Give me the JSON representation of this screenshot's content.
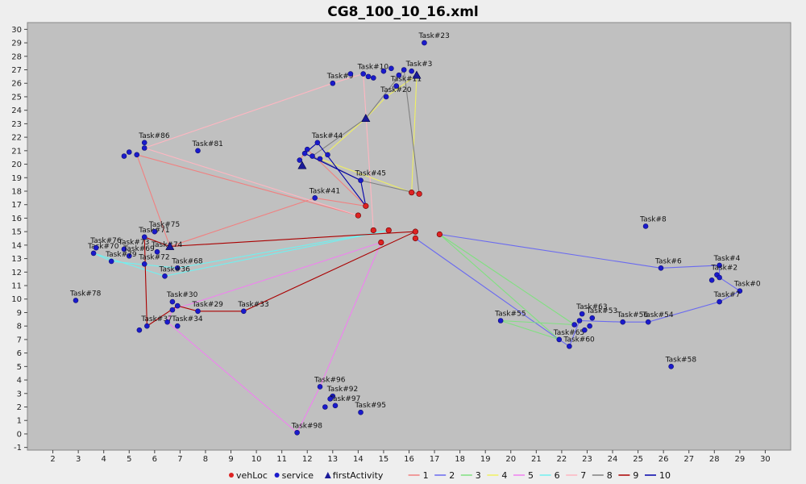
{
  "chart_data": {
    "type": "scatter",
    "title": "CG8_100_10_16.xml",
    "xlabel": "",
    "ylabel": "",
    "xlim": [
      1,
      31
    ],
    "ylim": [
      -1.2,
      30.5
    ],
    "x_ticks": [
      2,
      3,
      4,
      5,
      6,
      7,
      8,
      9,
      10,
      11,
      12,
      13,
      14,
      15,
      16,
      17,
      18,
      19,
      20,
      21,
      22,
      23,
      24,
      25,
      26,
      27,
      28,
      29,
      30
    ],
    "y_ticks": [
      -1,
      0,
      1,
      2,
      3,
      4,
      5,
      6,
      7,
      8,
      9,
      10,
      11,
      12,
      13,
      14,
      15,
      16,
      17,
      18,
      19,
      20,
      21,
      22,
      23,
      24,
      25,
      26,
      27,
      28,
      29,
      30
    ],
    "grid": false,
    "legend_position": "bottom",
    "legend": [
      {
        "name": "vehLoc",
        "marker": "circle",
        "color": "#dd2222"
      },
      {
        "name": "service",
        "marker": "circle",
        "color": "#1a1acc"
      },
      {
        "name": "firstActivity",
        "marker": "triangle",
        "color": "#1a1a99"
      },
      {
        "name": "1",
        "marker": "line",
        "color": "#f08080"
      },
      {
        "name": "2",
        "marker": "line",
        "color": "#6a6af0"
      },
      {
        "name": "3",
        "marker": "line",
        "color": "#80e080"
      },
      {
        "name": "4",
        "marker": "line",
        "color": "#f0f060"
      },
      {
        "name": "5",
        "marker": "line",
        "color": "#f080f0"
      },
      {
        "name": "6",
        "marker": "line",
        "color": "#70f0f0"
      },
      {
        "name": "7",
        "marker": "line",
        "color": "#ffb6c1"
      },
      {
        "name": "8",
        "marker": "line",
        "color": "#808080"
      },
      {
        "name": "9",
        "marker": "line",
        "color": "#aa0000"
      },
      {
        "name": "10",
        "marker": "line",
        "color": "#0000aa"
      }
    ],
    "veh_locations": [
      [
        16.1,
        17.9
      ],
      [
        16.4,
        17.8
      ],
      [
        14.3,
        16.9
      ],
      [
        14.0,
        16.2
      ],
      [
        14.6,
        15.1
      ],
      [
        15.2,
        15.1
      ],
      [
        16.25,
        15.0
      ],
      [
        17.2,
        14.8
      ],
      [
        16.25,
        14.5
      ],
      [
        14.9,
        14.2
      ]
    ],
    "first_activities": [
      [
        14.3,
        23.4
      ],
      [
        16.3,
        26.6
      ],
      [
        11.8,
        19.9
      ],
      [
        6.6,
        13.9
      ]
    ],
    "service_points": [
      {
        "label": "Task#23",
        "x": 16.6,
        "y": 29.0
      },
      {
        "label": "Task#20",
        "x": 15.1,
        "y": 25.0
      },
      {
        "label": "Task#9",
        "x": 13.0,
        "y": 26.0
      },
      {
        "label": "Task#10",
        "x": 14.2,
        "y": 26.7
      },
      {
        "label": "Task#11",
        "x": 15.5,
        "y": 25.8
      },
      {
        "label": "Task#3",
        "x": 16.1,
        "y": 26.9
      },
      {
        "label": "",
        "x": 13.7,
        "y": 26.7
      },
      {
        "label": "",
        "x": 14.4,
        "y": 26.5
      },
      {
        "label": "",
        "x": 14.6,
        "y": 26.4
      },
      {
        "label": "",
        "x": 15.0,
        "y": 26.9
      },
      {
        "label": "",
        "x": 15.3,
        "y": 27.1
      },
      {
        "label": "",
        "x": 15.6,
        "y": 26.6
      },
      {
        "label": "",
        "x": 15.8,
        "y": 27.0
      },
      {
        "label": "Task#44",
        "x": 12.4,
        "y": 21.6
      },
      {
        "label": "Task#81",
        "x": 7.7,
        "y": 21.0
      },
      {
        "label": "Task#45",
        "x": 14.1,
        "y": 18.8
      },
      {
        "label": "Task#41",
        "x": 12.3,
        "y": 17.5
      },
      {
        "label": "",
        "x": 11.9,
        "y": 20.8
      },
      {
        "label": "",
        "x": 12.0,
        "y": 21.1
      },
      {
        "label": "",
        "x": 12.2,
        "y": 20.6
      },
      {
        "label": "",
        "x": 12.5,
        "y": 20.4
      },
      {
        "label": "",
        "x": 12.8,
        "y": 20.7
      },
      {
        "label": "",
        "x": 11.7,
        "y": 20.3
      },
      {
        "label": "Task#86",
        "x": 5.6,
        "y": 21.6
      },
      {
        "label": "",
        "x": 4.8,
        "y": 20.6
      },
      {
        "label": "",
        "x": 5.0,
        "y": 20.9
      },
      {
        "label": "",
        "x": 5.3,
        "y": 20.7
      },
      {
        "label": "",
        "x": 5.6,
        "y": 21.2
      },
      {
        "label": "Task#71",
        "x": 5.6,
        "y": 14.6
      },
      {
        "label": "Task#75",
        "x": 6.0,
        "y": 15.0
      },
      {
        "label": "Task#70",
        "x": 3.6,
        "y": 13.4
      },
      {
        "label": "Task#76",
        "x": 3.7,
        "y": 13.8
      },
      {
        "label": "Task#73",
        "x": 4.8,
        "y": 13.7
      },
      {
        "label": "Task#69",
        "x": 5.0,
        "y": 13.2
      },
      {
        "label": "Task#79",
        "x": 4.3,
        "y": 12.8
      },
      {
        "label": "Task#72",
        "x": 5.6,
        "y": 12.6
      },
      {
        "label": "Task#68",
        "x": 6.9,
        "y": 12.3
      },
      {
        "label": "Task#36",
        "x": 6.4,
        "y": 11.7
      },
      {
        "label": "Task#74",
        "x": 6.1,
        "y": 13.5
      },
      {
        "label": "Task#78",
        "x": 2.9,
        "y": 9.9
      },
      {
        "label": "Task#30",
        "x": 6.7,
        "y": 9.8
      },
      {
        "label": "Task#29",
        "x": 7.7,
        "y": 9.1
      },
      {
        "label": "Task#33",
        "x": 9.5,
        "y": 9.1
      },
      {
        "label": "Task#37",
        "x": 5.7,
        "y": 8.0
      },
      {
        "label": "Task#34",
        "x": 6.9,
        "y": 8.0
      },
      {
        "label": "",
        "x": 5.4,
        "y": 7.7
      },
      {
        "label": "",
        "x": 6.5,
        "y": 8.3
      },
      {
        "label": "",
        "x": 6.7,
        "y": 9.2
      },
      {
        "label": "",
        "x": 6.9,
        "y": 9.5
      },
      {
        "label": "Task#8",
        "x": 25.3,
        "y": 15.4
      },
      {
        "label": "Task#6",
        "x": 25.9,
        "y": 12.3
      },
      {
        "label": "Task#4",
        "x": 28.2,
        "y": 12.5
      },
      {
        "label": "Task#2",
        "x": 28.1,
        "y": 11.8
      },
      {
        "label": "",
        "x": 27.9,
        "y": 11.4
      },
      {
        "label": "",
        "x": 28.2,
        "y": 11.6
      },
      {
        "label": "Task#0",
        "x": 29.0,
        "y": 10.6
      },
      {
        "label": "Task#7",
        "x": 28.2,
        "y": 9.8
      },
      {
        "label": "Task#63",
        "x": 22.8,
        "y": 8.9
      },
      {
        "label": "Task#53",
        "x": 23.2,
        "y": 8.6
      },
      {
        "label": "Task#56",
        "x": 24.4,
        "y": 8.3
      },
      {
        "label": "Task#54",
        "x": 25.4,
        "y": 8.3
      },
      {
        "label": "Task#55",
        "x": 19.6,
        "y": 8.4
      },
      {
        "label": "Task#65",
        "x": 21.9,
        "y": 7.0
      },
      {
        "label": "Task#60",
        "x": 22.3,
        "y": 6.5
      },
      {
        "label": "",
        "x": 22.5,
        "y": 8.1
      },
      {
        "label": "",
        "x": 22.7,
        "y": 8.4
      },
      {
        "label": "",
        "x": 22.9,
        "y": 7.7
      },
      {
        "label": "",
        "x": 23.1,
        "y": 8.0
      },
      {
        "label": "Task#58",
        "x": 26.3,
        "y": 5.0
      },
      {
        "label": "Task#96",
        "x": 12.5,
        "y": 3.5
      },
      {
        "label": "Task#92",
        "x": 13.0,
        "y": 2.8
      },
      {
        "label": "Task#97",
        "x": 13.1,
        "y": 2.1
      },
      {
        "label": "Task#95",
        "x": 14.1,
        "y": 1.6
      },
      {
        "label": "Task#98",
        "x": 11.6,
        "y": 0.1
      },
      {
        "label": "",
        "x": 12.7,
        "y": 2.0
      },
      {
        "label": "",
        "x": 12.9,
        "y": 2.6
      }
    ],
    "routes": [
      {
        "name": "1",
        "color": "#f08080",
        "points": [
          [
            14.0,
            16.2
          ],
          [
            5.3,
            20.7
          ],
          [
            6.6,
            13.9
          ],
          [
            12.3,
            17.5
          ],
          [
            14.3,
            16.9
          ],
          [
            12.0,
            21.1
          ],
          [
            11.7,
            20.3
          ]
        ]
      },
      {
        "name": "2",
        "color": "#6a6af0",
        "points": [
          [
            16.25,
            14.5
          ],
          [
            21.9,
            7.0
          ],
          [
            22.3,
            6.5
          ],
          [
            22.7,
            8.4
          ],
          [
            24.4,
            8.3
          ],
          [
            25.4,
            8.3
          ],
          [
            28.2,
            9.8
          ],
          [
            29.0,
            10.6
          ],
          [
            28.2,
            11.6
          ],
          [
            28.2,
            12.5
          ],
          [
            25.9,
            12.3
          ],
          [
            17.2,
            14.8
          ]
        ]
      },
      {
        "name": "3",
        "color": "#80e080",
        "points": [
          [
            17.2,
            14.8
          ],
          [
            22.5,
            8.1
          ],
          [
            19.6,
            8.4
          ],
          [
            21.9,
            7.0
          ],
          [
            17.2,
            14.8
          ]
        ]
      },
      {
        "name": "4",
        "color": "#f0f060",
        "points": [
          [
            16.1,
            17.9
          ],
          [
            16.3,
            26.6
          ],
          [
            15.1,
            25.0
          ],
          [
            14.3,
            23.4
          ],
          [
            12.5,
            20.4
          ],
          [
            16.1,
            17.9
          ]
        ]
      },
      {
        "name": "5",
        "color": "#f080f0",
        "points": [
          [
            14.9,
            14.2
          ],
          [
            6.7,
            9.2
          ],
          [
            6.5,
            8.3
          ],
          [
            11.6,
            0.1
          ],
          [
            12.5,
            3.5
          ],
          [
            14.9,
            14.2
          ]
        ]
      },
      {
        "name": "6",
        "color": "#70f0f0",
        "points": [
          [
            15.2,
            15.1
          ],
          [
            6.4,
            11.7
          ],
          [
            3.6,
            13.4
          ],
          [
            4.3,
            12.8
          ],
          [
            6.9,
            12.3
          ],
          [
            15.2,
            15.1
          ]
        ]
      },
      {
        "name": "7",
        "color": "#ffb6c1",
        "points": [
          [
            14.0,
            16.2
          ],
          [
            5.6,
            21.2
          ],
          [
            13.0,
            26.0
          ],
          [
            14.2,
            26.7
          ],
          [
            14.6,
            15.1
          ]
        ]
      },
      {
        "name": "8",
        "color": "#808080",
        "points": [
          [
            16.4,
            17.8
          ],
          [
            15.8,
            27.0
          ],
          [
            14.3,
            23.4
          ],
          [
            12.2,
            20.6
          ],
          [
            14.1,
            18.8
          ],
          [
            16.4,
            17.8
          ]
        ]
      },
      {
        "name": "9",
        "color": "#aa0000",
        "points": [
          [
            16.25,
            15.0
          ],
          [
            6.6,
            13.9
          ],
          [
            5.6,
            14.6
          ],
          [
            5.7,
            8.0
          ],
          [
            6.9,
            9.5
          ],
          [
            7.7,
            9.1
          ],
          [
            9.5,
            9.1
          ],
          [
            16.25,
            15.0
          ]
        ]
      },
      {
        "name": "10",
        "color": "#0000aa",
        "points": [
          [
            14.3,
            16.9
          ],
          [
            14.1,
            18.8
          ],
          [
            11.9,
            20.8
          ],
          [
            12.4,
            21.6
          ],
          [
            14.3,
            16.9
          ]
        ]
      }
    ]
  }
}
